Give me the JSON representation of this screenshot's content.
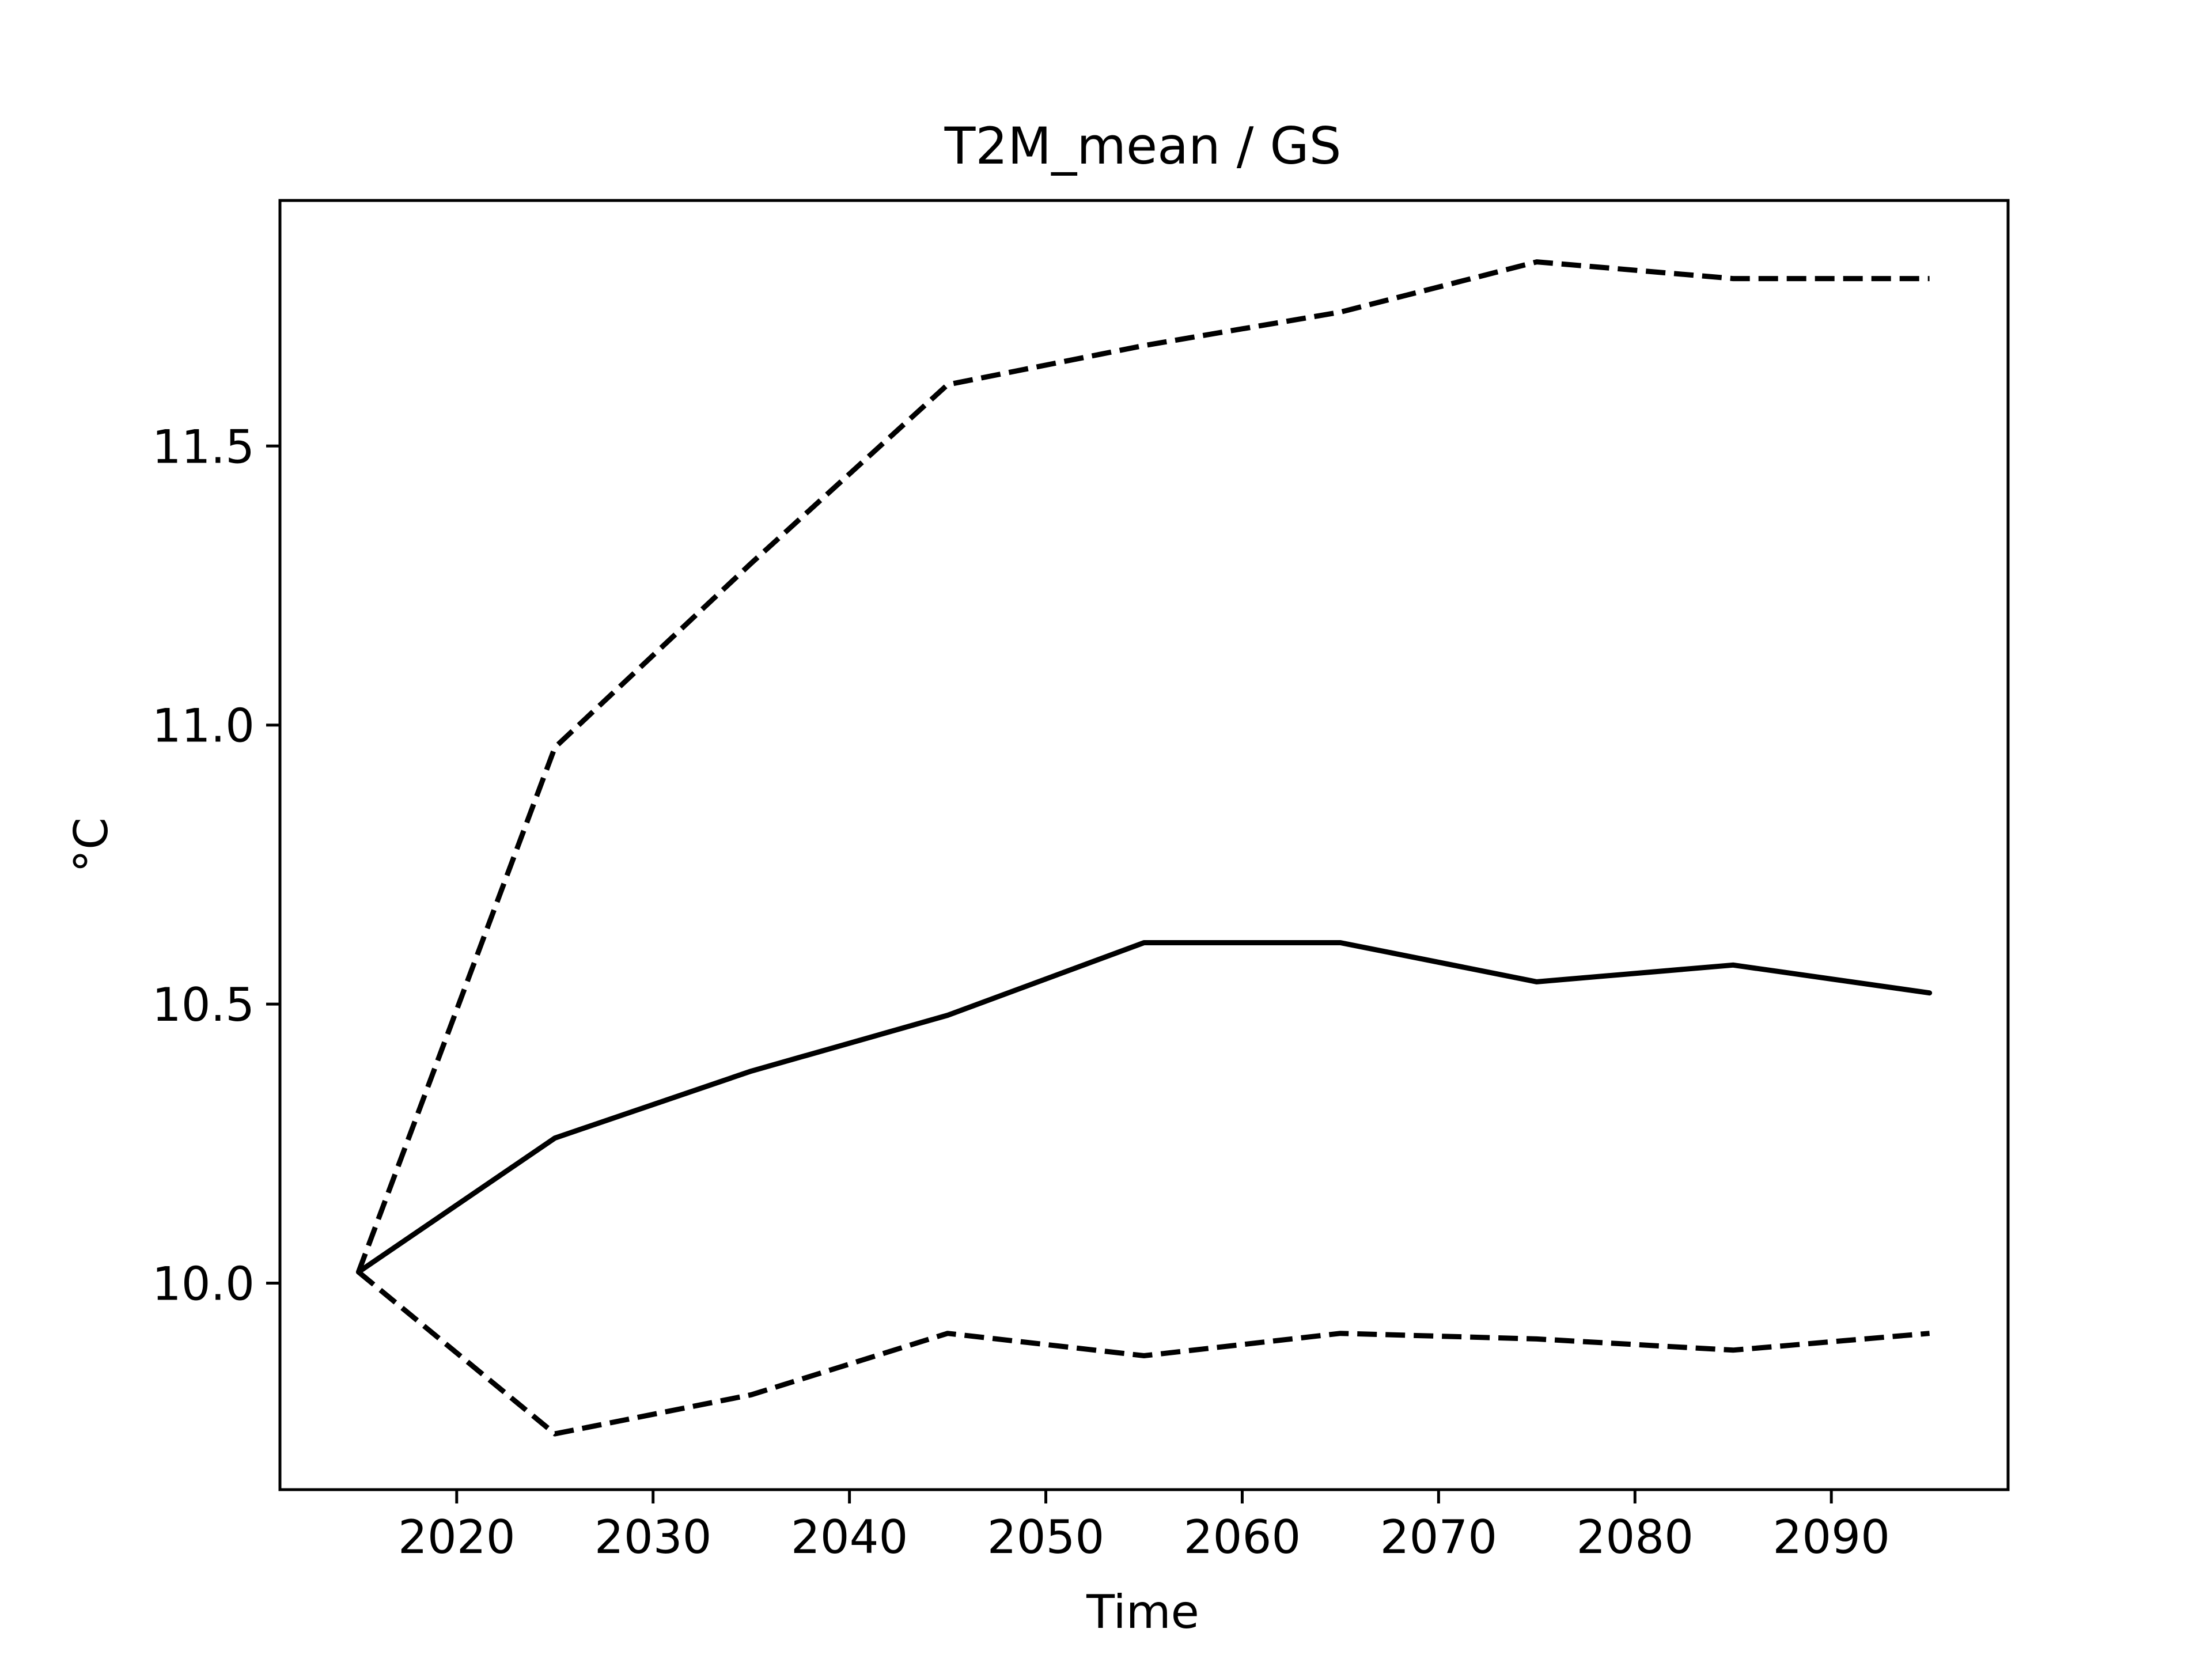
{
  "chart_data": {
    "type": "line",
    "title": "T2M_mean / GS",
    "xlabel": "Time",
    "ylabel": "°C",
    "xlim": [
      2011,
      2099
    ],
    "ylim": [
      9.63,
      11.94
    ],
    "xticks": [
      2020,
      2030,
      2040,
      2050,
      2060,
      2070,
      2080,
      2090
    ],
    "xtick_labels": [
      "2020",
      "2030",
      "2040",
      "2050",
      "2060",
      "2070",
      "2080",
      "2090"
    ],
    "yticks": [
      10.0,
      10.5,
      11.0,
      11.5
    ],
    "ytick_labels": [
      "10.0",
      "10.5",
      "11.0",
      "11.5"
    ],
    "grid": false,
    "x": [
      2015,
      2025,
      2035,
      2045,
      2055,
      2065,
      2075,
      2085,
      2095
    ],
    "series": [
      {
        "style": "solid",
        "color": "#000000",
        "values": [
          10.02,
          10.26,
          10.38,
          10.48,
          10.61,
          10.61,
          10.54,
          10.57,
          10.52
        ]
      },
      {
        "style": "dashed",
        "color": "#000000",
        "values": [
          10.02,
          10.96,
          11.29,
          11.61,
          11.68,
          11.74,
          11.83,
          11.8,
          11.8
        ]
      },
      {
        "style": "dashed",
        "color": "#000000",
        "values": [
          10.02,
          9.73,
          9.8,
          9.91,
          9.87,
          9.91,
          9.9,
          9.88,
          9.91
        ]
      }
    ]
  }
}
